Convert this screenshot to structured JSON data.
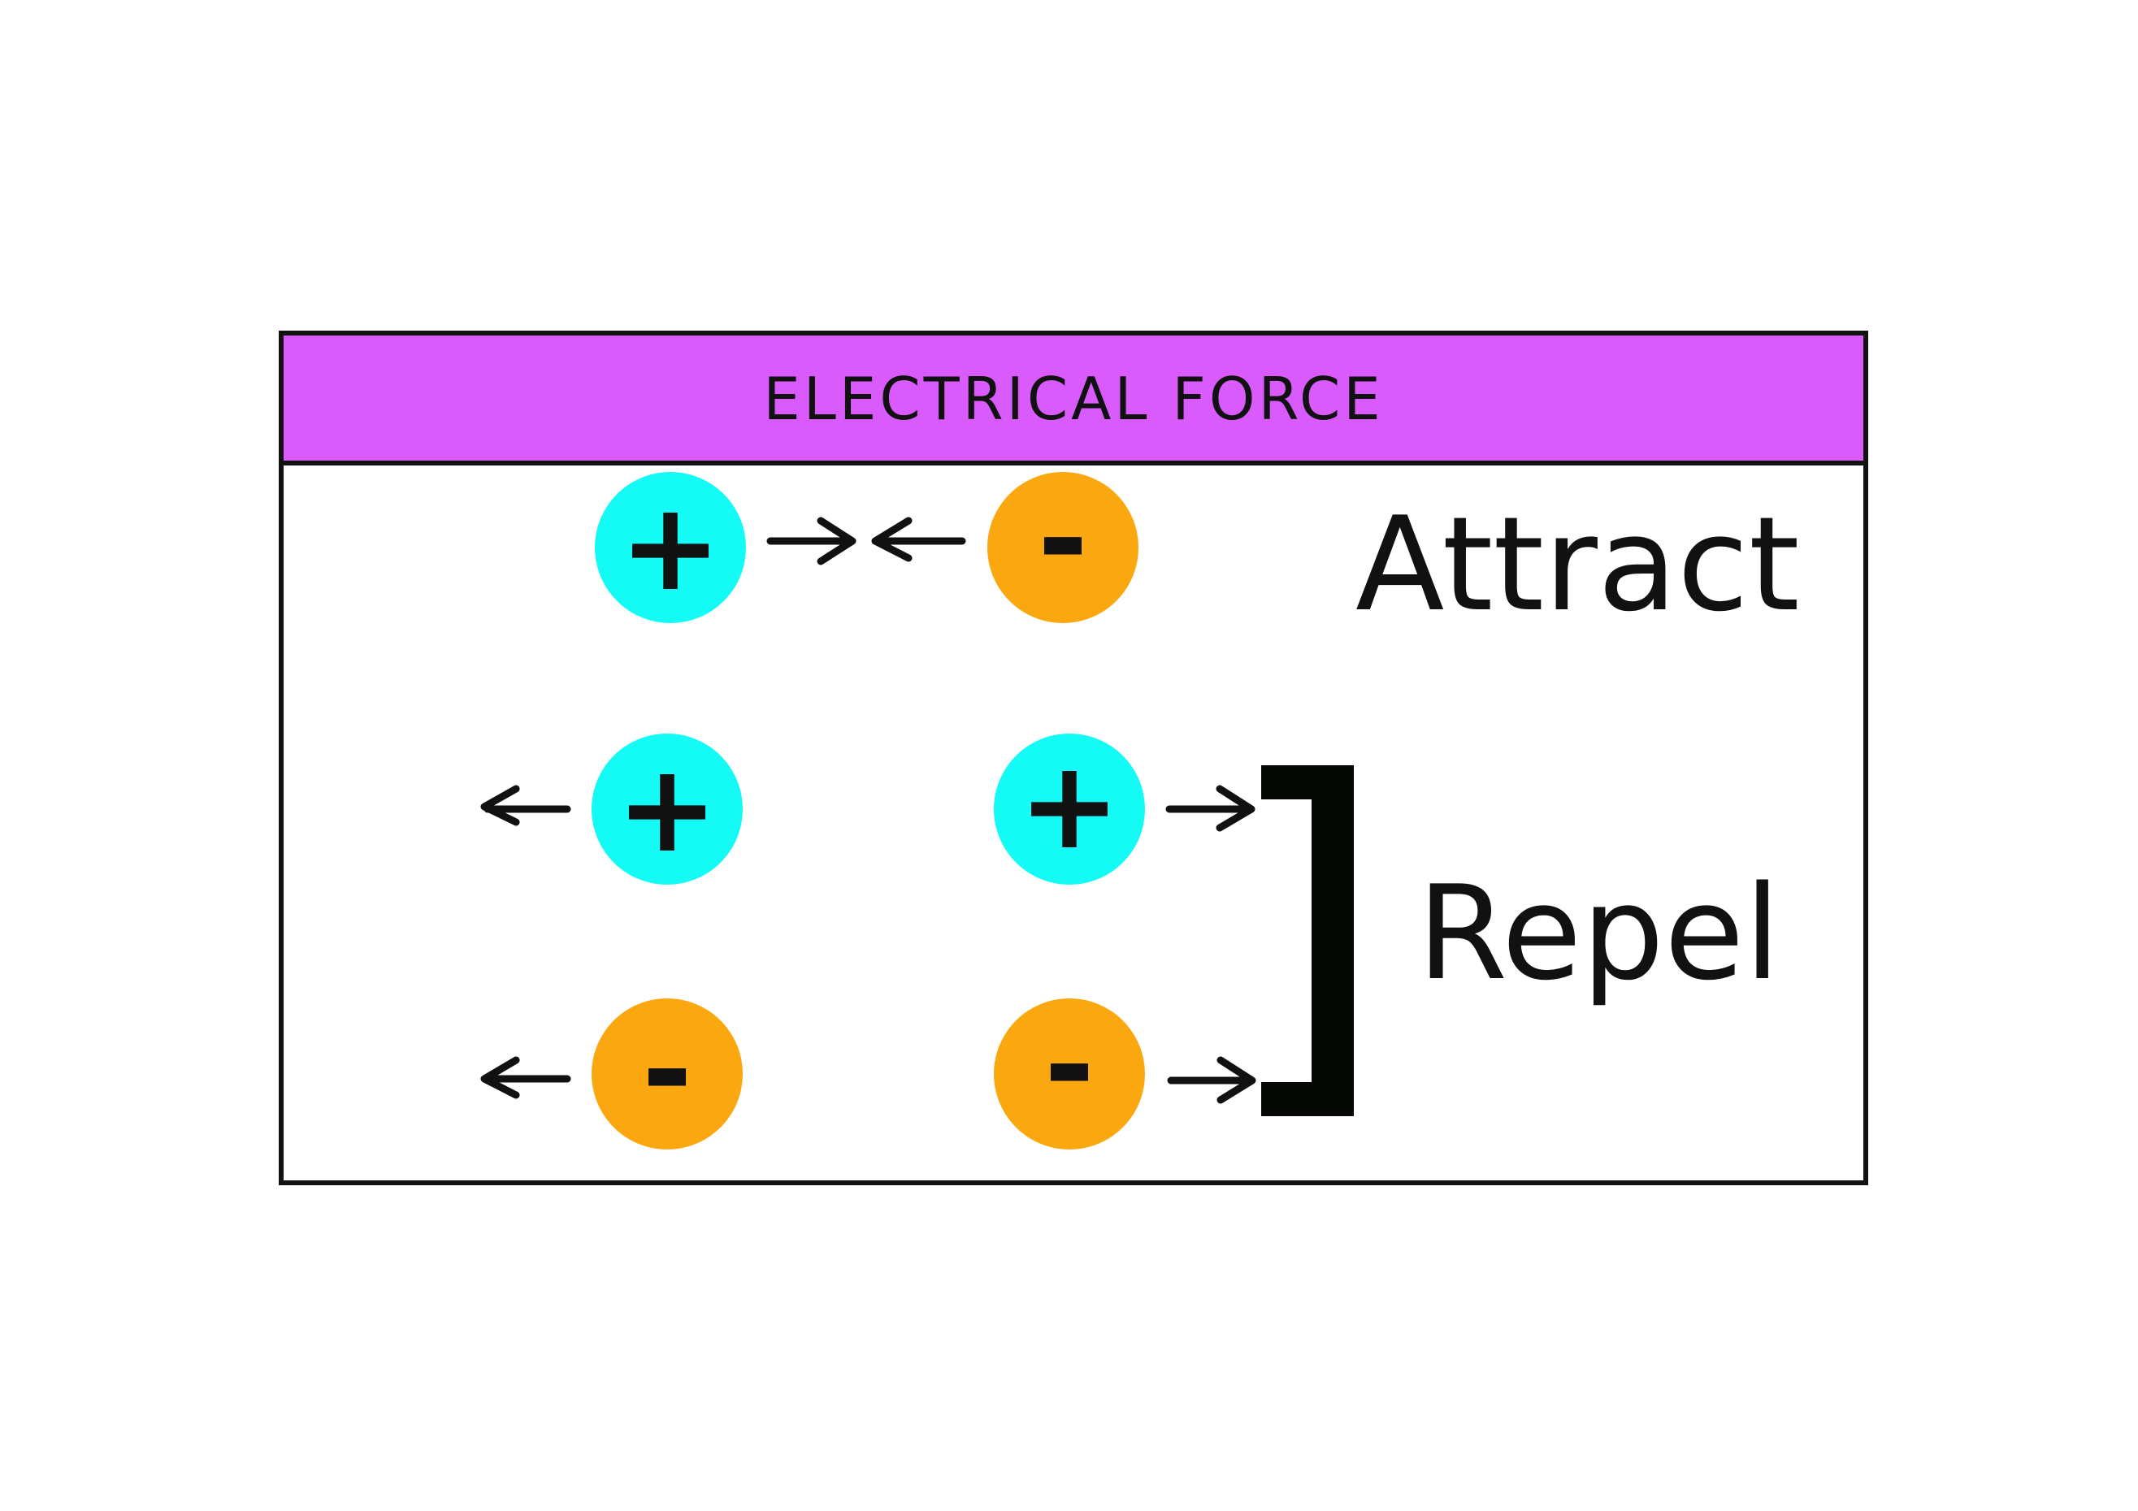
{
  "title": "ELECTRICAL FORCE",
  "labels": {
    "attract": "Attract",
    "repel": "Repel"
  },
  "charges": {
    "positive_symbol": "+",
    "negative_symbol": "-"
  },
  "colors": {
    "header_bg": "#D95BFC",
    "positive": "#14FAF5",
    "negative": "#FBA810",
    "outline": "#111111",
    "bracket": "#050805"
  }
}
